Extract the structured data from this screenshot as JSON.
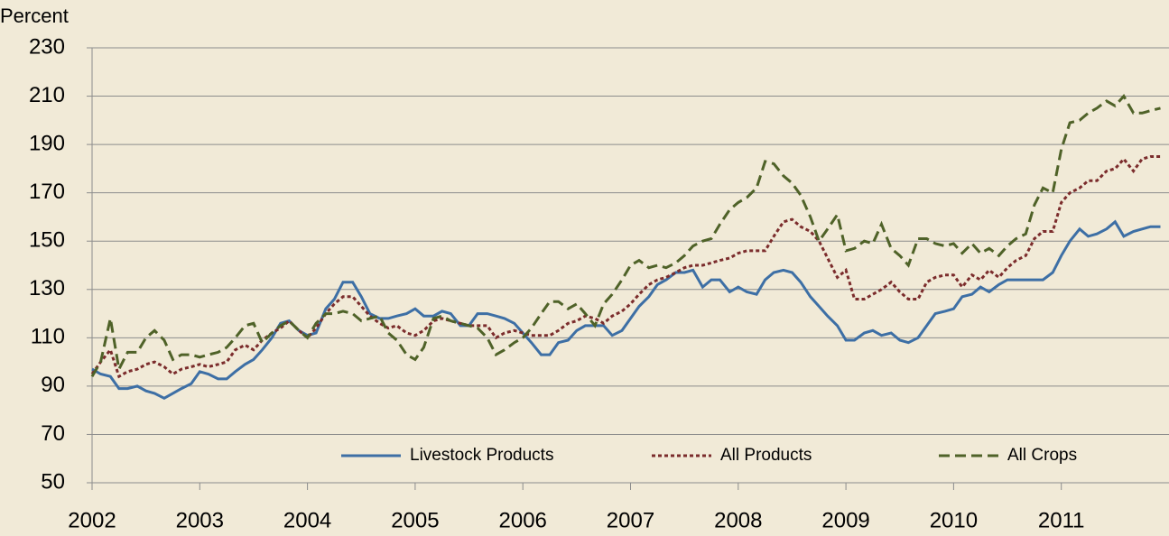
{
  "chart_data": {
    "type": "line",
    "y_label": "Percent",
    "x": [
      2002,
      2002.08,
      2002.17,
      2002.25,
      2002.33,
      2002.42,
      2002.5,
      2002.58,
      2002.67,
      2002.75,
      2002.83,
      2002.92,
      2003,
      2003.08,
      2003.17,
      2003.25,
      2003.33,
      2003.42,
      2003.5,
      2003.58,
      2003.67,
      2003.75,
      2003.83,
      2003.92,
      2004,
      2004.08,
      2004.17,
      2004.25,
      2004.33,
      2004.42,
      2004.5,
      2004.58,
      2004.67,
      2004.75,
      2004.83,
      2004.92,
      2005,
      2005.08,
      2005.17,
      2005.25,
      2005.33,
      2005.42,
      2005.5,
      2005.58,
      2005.67,
      2005.75,
      2005.83,
      2005.92,
      2006,
      2006.08,
      2006.17,
      2006.25,
      2006.33,
      2006.42,
      2006.5,
      2006.58,
      2006.67,
      2006.75,
      2006.83,
      2006.92,
      2007,
      2007.08,
      2007.17,
      2007.25,
      2007.33,
      2007.42,
      2007.5,
      2007.58,
      2007.67,
      2007.75,
      2007.83,
      2007.92,
      2008,
      2008.08,
      2008.17,
      2008.25,
      2008.33,
      2008.42,
      2008.5,
      2008.58,
      2008.67,
      2008.75,
      2008.83,
      2008.92,
      2009,
      2009.08,
      2009.17,
      2009.25,
      2009.33,
      2009.42,
      2009.5,
      2009.58,
      2009.67,
      2009.75,
      2009.83,
      2009.92,
      2010,
      2010.08,
      2010.17,
      2010.25,
      2010.33,
      2010.42,
      2010.5,
      2010.58,
      2010.67,
      2010.75,
      2010.83,
      2010.92,
      2011,
      2011.08,
      2011.17,
      2011.25,
      2011.33,
      2011.42,
      2011.5,
      2011.58,
      2011.67,
      2011.75,
      2011.83,
      2011.92
    ],
    "series": [
      {
        "name": "Livestock Products",
        "color": "#3d6fa5",
        "dash": "none",
        "values": [
          97,
          95,
          94,
          89,
          89,
          90,
          88,
          87,
          85,
          87,
          89,
          91,
          96,
          95,
          93,
          93,
          96,
          99,
          101,
          105,
          110,
          116,
          117,
          113,
          111,
          112,
          122,
          126,
          133,
          133,
          127,
          120,
          118,
          118,
          119,
          120,
          122,
          119,
          119,
          121,
          120,
          115,
          115,
          120,
          120,
          119,
          118,
          116,
          112,
          108,
          103,
          103,
          108,
          109,
          113,
          115,
          115,
          115,
          111,
          113,
          118,
          123,
          127,
          132,
          134,
          137,
          137,
          138,
          131,
          134,
          134,
          129,
          131,
          129,
          128,
          134,
          137,
          138,
          137,
          133,
          127,
          123,
          119,
          115,
          109,
          109,
          112,
          113,
          111,
          112,
          109,
          108,
          110,
          115,
          120,
          121,
          122,
          127,
          128,
          131,
          129,
          132,
          134,
          134,
          134,
          134,
          134,
          137,
          144,
          150,
          155,
          152,
          153,
          155,
          158,
          152,
          154,
          155,
          156,
          156
        ]
      },
      {
        "name": "All Products",
        "color": "#7b2c2c",
        "dash": "4,3",
        "values": [
          95,
          100,
          105,
          94,
          96,
          97,
          99,
          100,
          98,
          95,
          97,
          98,
          99,
          98,
          99,
          100,
          105,
          107,
          105,
          109,
          112,
          114,
          117,
          113,
          110,
          114,
          120,
          124,
          127,
          127,
          123,
          119,
          116,
          114,
          115,
          112,
          111,
          113,
          117,
          118,
          117,
          116,
          115,
          115,
          115,
          110,
          112,
          113,
          112,
          111,
          111,
          111,
          113,
          116,
          117,
          119,
          118,
          116,
          119,
          121,
          124,
          128,
          132,
          134,
          135,
          137,
          139,
          140,
          140,
          141,
          142,
          143,
          145,
          146,
          146,
          146,
          152,
          158,
          159,
          156,
          154,
          150,
          143,
          135,
          138,
          126,
          126,
          128,
          130,
          133,
          129,
          126,
          126,
          133,
          135,
          136,
          136,
          131,
          136,
          134,
          138,
          135,
          139,
          142,
          144,
          151,
          154,
          154,
          166,
          170,
          172,
          175,
          175,
          179,
          180,
          184,
          179,
          184,
          185,
          185
        ]
      },
      {
        "name": "All Crops",
        "color": "#4f6228",
        "dash": "12,6",
        "values": [
          94,
          100,
          118,
          97,
          104,
          104,
          110,
          113,
          109,
          101,
          103,
          103,
          102,
          103,
          104,
          106,
          110,
          115,
          116,
          108,
          112,
          115,
          117,
          113,
          110,
          116,
          120,
          120,
          121,
          120,
          117,
          118,
          119,
          112,
          109,
          103,
          101,
          106,
          118,
          119,
          117,
          116,
          115,
          114,
          110,
          103,
          105,
          108,
          110,
          114,
          120,
          125,
          125,
          122,
          124,
          120,
          115,
          124,
          128,
          134,
          140,
          142,
          139,
          140,
          139,
          141,
          144,
          148,
          150,
          151,
          157,
          163,
          166,
          168,
          172,
          183,
          182,
          177,
          174,
          169,
          160,
          150,
          155,
          161,
          146,
          147,
          150,
          149,
          157,
          147,
          144,
          140,
          151,
          151,
          149,
          148,
          149,
          145,
          149,
          145,
          147,
          144,
          148,
          151,
          153,
          165,
          172,
          170,
          188,
          199,
          200,
          203,
          205,
          208,
          206,
          210,
          203,
          203,
          204,
          205
        ]
      }
    ],
    "xlim": [
      2002,
      2012
    ],
    "xticks": [
      2002,
      2003,
      2004,
      2005,
      2006,
      2007,
      2008,
      2009,
      2010,
      2011
    ],
    "ylim": [
      50,
      230
    ],
    "yticks": [
      50,
      70,
      90,
      110,
      130,
      150,
      170,
      190,
      210,
      230
    ],
    "grid": true,
    "legend": "bottom"
  }
}
